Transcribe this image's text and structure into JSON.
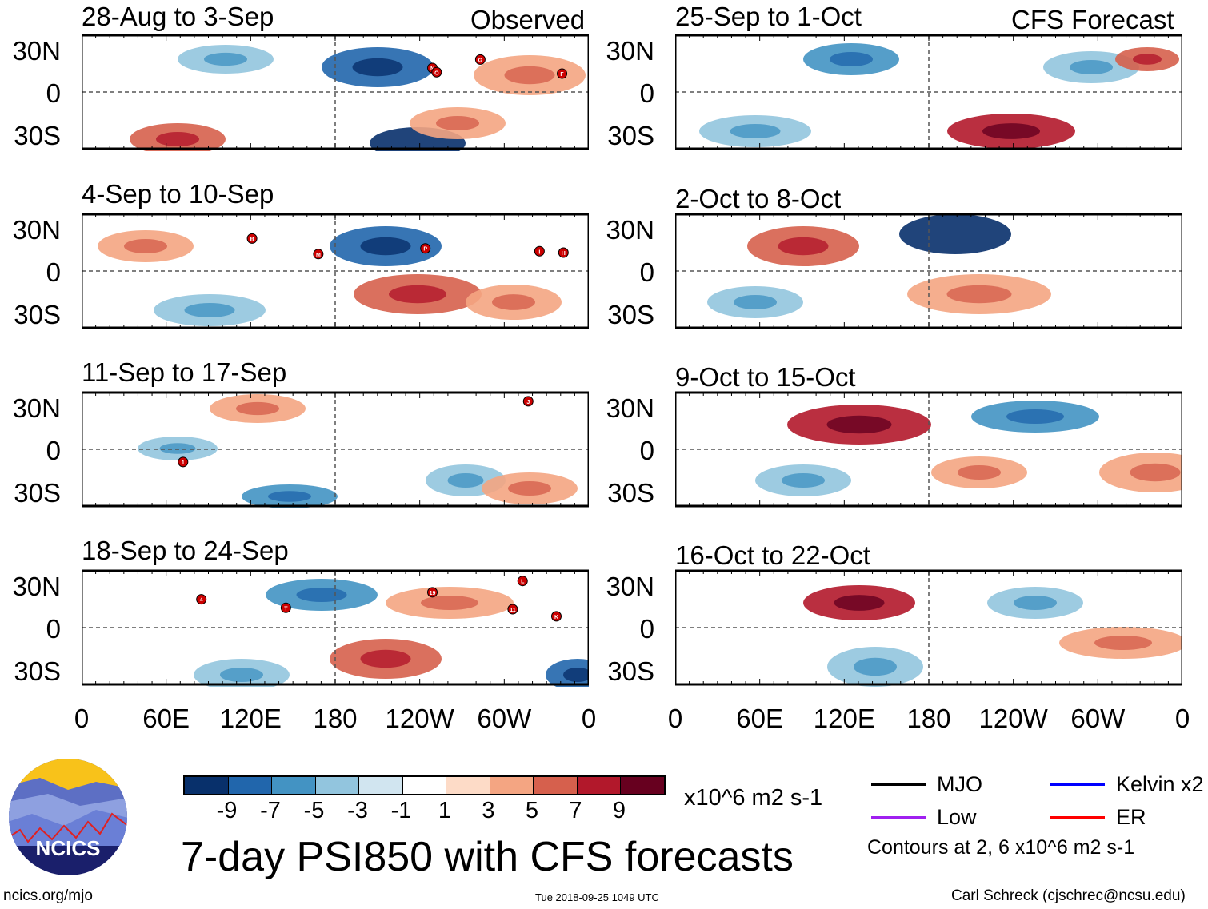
{
  "chart_data": {
    "type": "heatmap",
    "title": "7-day PSI850 with CFS forecasts",
    "variable": "PSI850 anomaly",
    "units": "x10^6 m2 s-1",
    "column_headers": {
      "left": "Observed",
      "right": "CFS Forecast"
    },
    "lat_ticks": [
      "30N",
      "0",
      "30S"
    ],
    "lon_ticks": [
      "0",
      "60E",
      "120E",
      "180",
      "120W",
      "60W",
      "0"
    ],
    "colorbar": {
      "colors": [
        "#08306b",
        "#2166ac",
        "#4393c3",
        "#92c5de",
        "#d1e5f0",
        "#ffffff",
        "#fddbc7",
        "#f4a582",
        "#d6604d",
        "#b2182b",
        "#67001f"
      ],
      "labels": [
        "-9",
        "-7",
        "-5",
        "-3",
        "-1",
        "1",
        "3",
        "5",
        "7",
        "9"
      ]
    },
    "legend": [
      {
        "label": "MJO",
        "color": "#000000"
      },
      {
        "label": "Kelvin x2",
        "color": "#0000ff"
      },
      {
        "label": "Low",
        "color": "#a020f0"
      },
      {
        "label": "ER",
        "color": "#ff0000"
      }
    ],
    "contour_note": "Contours at 2, 6 x10^6 m2 s-1",
    "panels": [
      {
        "title": "28-Aug to 3-Sep",
        "storms": [
          {
            "id": "N",
            "lon": 249,
            "lat": 17
          },
          {
            "id": "O",
            "lon": 252,
            "lat": 14
          },
          {
            "id": "G",
            "lon": 283,
            "lat": 23
          },
          {
            "id": "F",
            "lon": 341,
            "lat": 13
          }
        ]
      },
      {
        "title": "4-Sep to 10-Sep",
        "storms": [
          {
            "id": "B",
            "lon": 121,
            "lat": 23
          },
          {
            "id": "M",
            "lon": 168,
            "lat": 12
          },
          {
            "id": "P",
            "lon": 244,
            "lat": 16
          },
          {
            "id": "I",
            "lon": 325,
            "lat": 14
          },
          {
            "id": "H",
            "lon": 342,
            "lat": 13
          }
        ]
      },
      {
        "title": "11-Sep to 17-Sep",
        "storms": [
          {
            "id": "J",
            "lon": 317,
            "lat": 34
          },
          {
            "id": "1",
            "lon": 72,
            "lat": -9
          }
        ]
      },
      {
        "title": "18-Sep to 24-Sep",
        "storms": [
          {
            "id": "4",
            "lon": 85,
            "lat": 20
          },
          {
            "id": "T",
            "lon": 145,
            "lat": 14
          },
          {
            "id": "19",
            "lon": 249,
            "lat": 25
          },
          {
            "id": "L",
            "lon": 313,
            "lat": 33
          },
          {
            "id": "11",
            "lon": 306,
            "lat": 13
          },
          {
            "id": "K",
            "lon": 337,
            "lat": 8
          }
        ]
      },
      {
        "title": "25-Sep to 1-Oct",
        "storms": []
      },
      {
        "title": "2-Oct to 8-Oct",
        "storms": []
      },
      {
        "title": "9-Oct to 15-Oct",
        "storms": []
      },
      {
        "title": "16-Oct to 22-Oct",
        "storms": []
      }
    ]
  },
  "logo": {
    "text": "NCICS"
  },
  "footer": {
    "url": "ncics.org/mjo",
    "timestamp": "Tue 2018-09-25 1049 UTC",
    "author": "Carl Schreck (cjschrec@ncsu.edu)"
  }
}
